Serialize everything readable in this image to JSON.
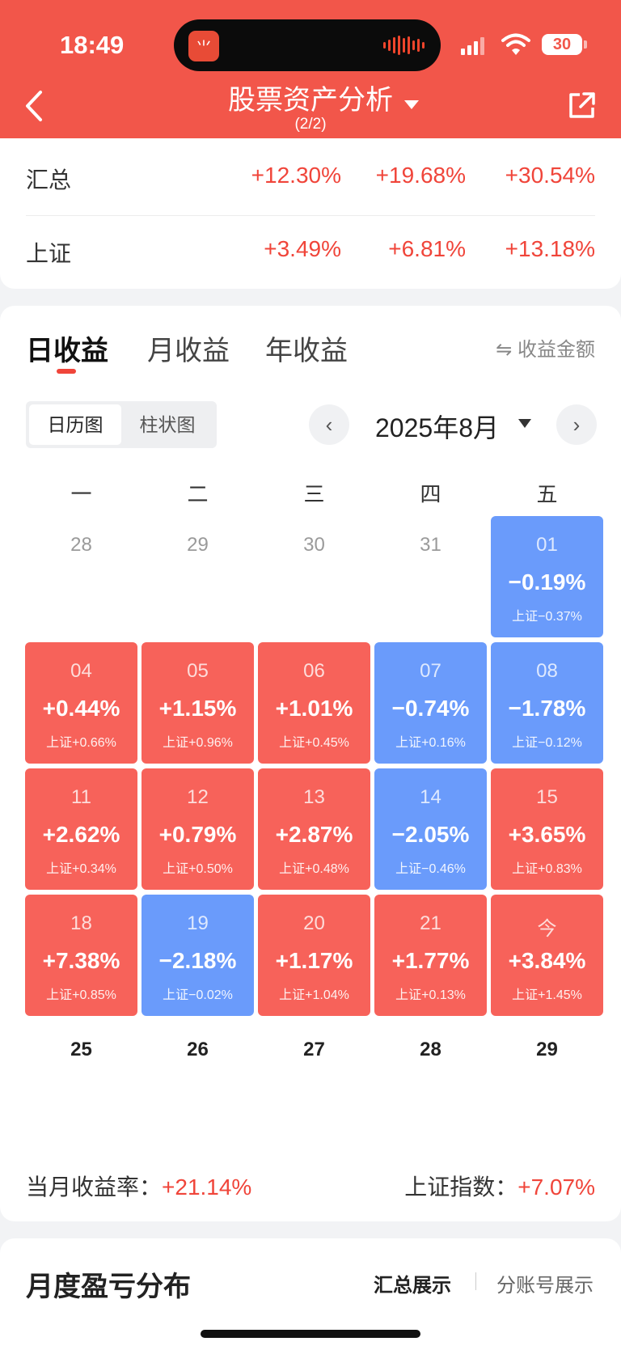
{
  "status_bar": {
    "time": "18:49",
    "battery": "30",
    "island_app_icon": "app-logo-icon"
  },
  "header": {
    "title": "股票资产分析",
    "subtitle": "(2/2)",
    "back_icon": "chevron-left-icon",
    "share_icon": "share-icon"
  },
  "summary_table": {
    "rows": [
      {
        "name": "汇总",
        "values": [
          "+12.30%",
          "+19.68%",
          "+30.54%"
        ]
      },
      {
        "name": "上证",
        "values": [
          "+3.49%",
          "+6.81%",
          "+13.18%"
        ]
      }
    ]
  },
  "tabs": [
    {
      "label": "日收益"
    },
    {
      "label": "月收益"
    },
    {
      "label": "年收益"
    }
  ],
  "amount_toggle": "⇋ 收益金额",
  "view_toggle": {
    "calendar": "日历图",
    "bar": "柱状图"
  },
  "month_nav": {
    "prev": "‹",
    "month": "2025年8月",
    "next": "›"
  },
  "weekdays": [
    "一",
    "二",
    "三",
    "四",
    "五"
  ],
  "calendar": [
    [
      {
        "day": "28",
        "type": "blank"
      },
      {
        "day": "29",
        "type": "blank"
      },
      {
        "day": "30",
        "type": "blank"
      },
      {
        "day": "31",
        "type": "blank"
      },
      {
        "day": "01",
        "pct": "−0.19%",
        "idx": "上证−0.37%",
        "type": "down"
      }
    ],
    [
      {
        "day": "04",
        "pct": "+0.44%",
        "idx": "上证+0.66%",
        "type": "up"
      },
      {
        "day": "05",
        "pct": "+1.15%",
        "idx": "上证+0.96%",
        "type": "up"
      },
      {
        "day": "06",
        "pct": "+1.01%",
        "idx": "上证+0.45%",
        "type": "up"
      },
      {
        "day": "07",
        "pct": "−0.74%",
        "idx": "上证+0.16%",
        "type": "down"
      },
      {
        "day": "08",
        "pct": "−1.78%",
        "idx": "上证−0.12%",
        "type": "down"
      }
    ],
    [
      {
        "day": "11",
        "pct": "+2.62%",
        "idx": "上证+0.34%",
        "type": "up"
      },
      {
        "day": "12",
        "pct": "+0.79%",
        "idx": "上证+0.50%",
        "type": "up"
      },
      {
        "day": "13",
        "pct": "+2.87%",
        "idx": "上证+0.48%",
        "type": "up"
      },
      {
        "day": "14",
        "pct": "−2.05%",
        "idx": "上证−0.46%",
        "type": "down"
      },
      {
        "day": "15",
        "pct": "+3.65%",
        "idx": "上证+0.83%",
        "type": "up"
      }
    ],
    [
      {
        "day": "18",
        "pct": "+7.38%",
        "idx": "上证+0.85%",
        "type": "up"
      },
      {
        "day": "19",
        "pct": "−2.18%",
        "idx": "上证−0.02%",
        "type": "down"
      },
      {
        "day": "20",
        "pct": "+1.17%",
        "idx": "上证+1.04%",
        "type": "up"
      },
      {
        "day": "21",
        "pct": "+1.77%",
        "idx": "上证+0.13%",
        "type": "up"
      },
      {
        "day": "今",
        "pct": "+3.84%",
        "idx": "上证+1.45%",
        "type": "up"
      }
    ],
    [
      {
        "day": "25",
        "type": "next"
      },
      {
        "day": "26",
        "type": "next"
      },
      {
        "day": "27",
        "type": "next"
      },
      {
        "day": "28",
        "type": "next"
      },
      {
        "day": "29",
        "type": "next"
      }
    ]
  ],
  "month_summary": {
    "return_label": "当月收益率：",
    "return_value": "+21.14%",
    "index_label": "上证指数：",
    "index_value": "+7.07%"
  },
  "distribution": {
    "title": "月度盈亏分布",
    "view_total": "汇总展示",
    "view_accounts": "分账号展示"
  },
  "colors": {
    "brand_red": "#f2564a",
    "gain": "#f7625a",
    "loss": "#6a9bfb",
    "text_red": "#f0453a"
  }
}
